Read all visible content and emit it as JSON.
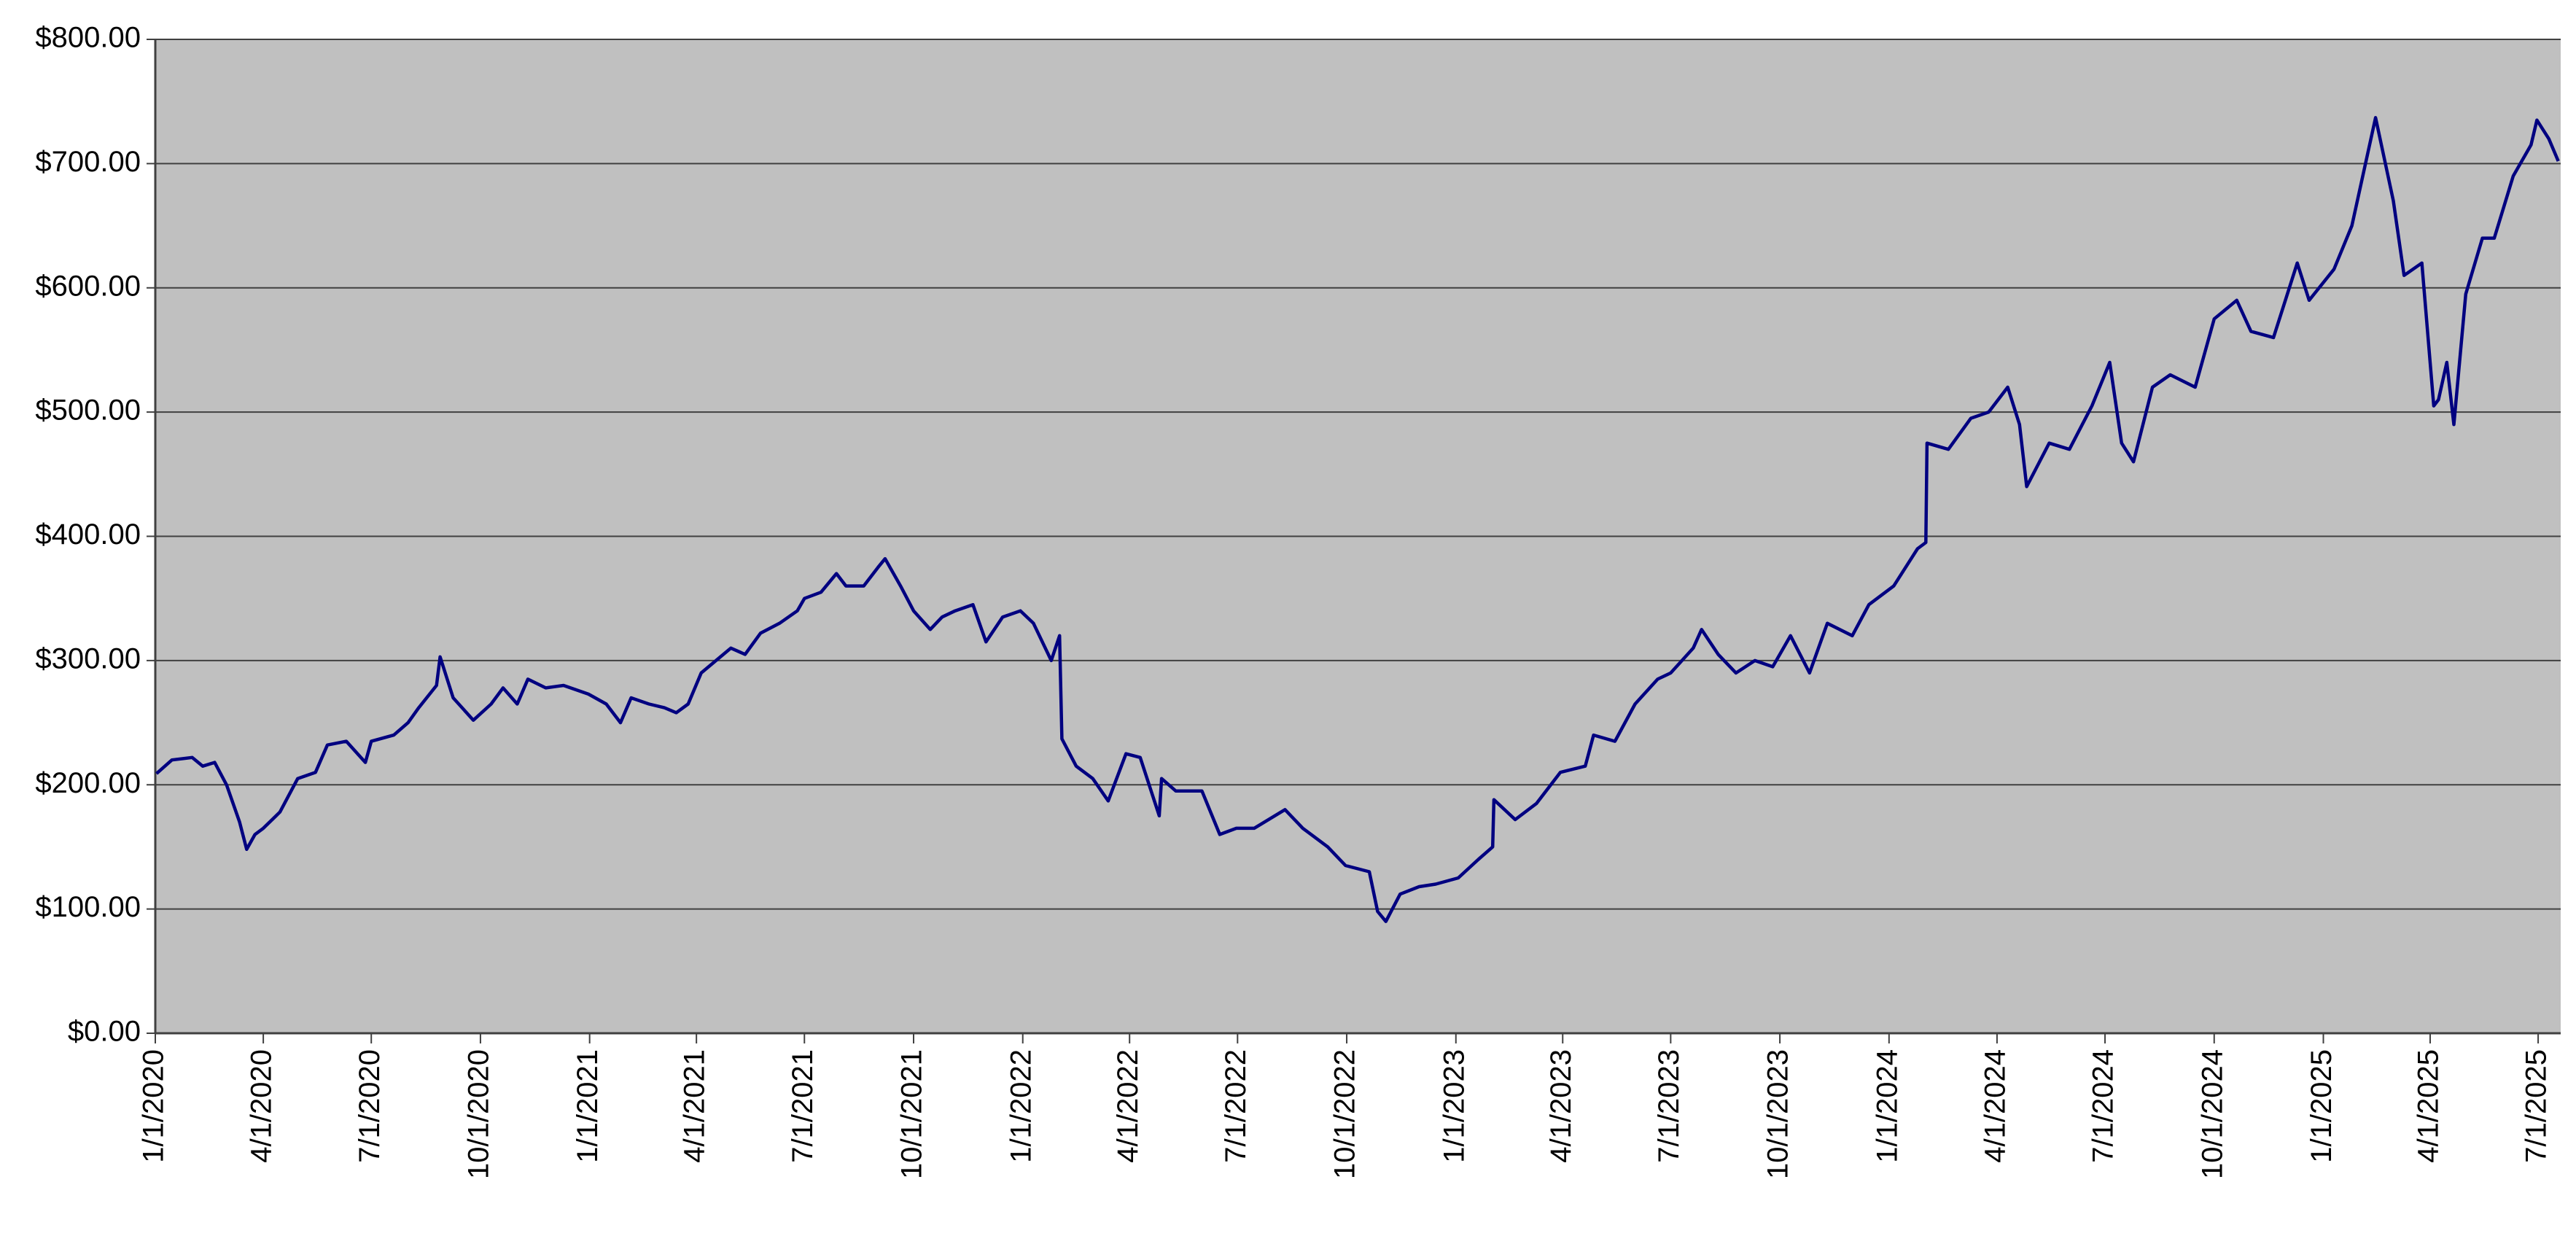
{
  "chart_data": {
    "type": "line",
    "x": [
      "2020-01-02",
      "2020-01-15",
      "2020-02-01",
      "2020-02-10",
      "2020-02-20",
      "2020-03-01",
      "2020-03-12",
      "2020-03-18",
      "2020-03-25",
      "2020-04-01",
      "2020-04-15",
      "2020-04-30",
      "2020-05-15",
      "2020-05-25",
      "2020-06-10",
      "2020-06-26",
      "2020-07-01",
      "2020-07-20",
      "2020-08-01",
      "2020-08-10",
      "2020-08-25",
      "2020-08-28",
      "2020-09-08",
      "2020-09-25",
      "2020-10-10",
      "2020-10-20",
      "2020-11-01",
      "2020-11-10",
      "2020-11-25",
      "2020-12-10",
      "2020-12-31",
      "2021-01-15",
      "2021-01-27",
      "2021-02-05",
      "2021-02-20",
      "2021-03-05",
      "2021-03-15",
      "2021-03-25",
      "2021-04-05",
      "2021-04-30",
      "2021-05-12",
      "2021-05-25",
      "2021-06-10",
      "2021-06-25",
      "2021-07-01",
      "2021-07-15",
      "2021-07-28",
      "2021-08-05",
      "2021-08-20",
      "2021-09-01",
      "2021-09-07",
      "2021-09-20",
      "2021-10-01",
      "2021-10-15",
      "2021-10-25",
      "2021-11-05",
      "2021-11-20",
      "2021-12-01",
      "2021-12-15",
      "2021-12-30",
      "2022-01-10",
      "2022-01-25",
      "2022-02-01",
      "2022-02-03",
      "2022-02-15",
      "2022-03-01",
      "2022-03-14",
      "2022-03-29",
      "2022-04-10",
      "2022-04-26",
      "2022-04-28",
      "2022-05-10",
      "2022-06-01",
      "2022-06-16",
      "2022-06-30",
      "2022-07-15",
      "2022-08-10",
      "2022-08-25",
      "2022-09-15",
      "2022-09-30",
      "2022-10-20",
      "2022-10-27",
      "2022-11-03",
      "2022-11-15",
      "2022-12-01",
      "2022-12-15",
      "2023-01-03",
      "2023-01-20",
      "2023-02-01",
      "2023-02-02",
      "2023-02-20",
      "2023-03-10",
      "2023-03-30",
      "2023-04-20",
      "2023-04-27",
      "2023-05-15",
      "2023-06-01",
      "2023-06-20",
      "2023-07-01",
      "2023-07-20",
      "2023-07-27",
      "2023-08-10",
      "2023-08-25",
      "2023-09-10",
      "2023-09-25",
      "2023-10-10",
      "2023-10-26",
      "2023-11-10",
      "2023-12-01",
      "2023-12-15",
      "2024-01-05",
      "2024-01-25",
      "2024-02-01",
      "2024-02-02",
      "2024-02-20",
      "2024-03-10",
      "2024-03-25",
      "2024-04-10",
      "2024-04-20",
      "2024-04-26",
      "2024-05-15",
      "2024-06-01",
      "2024-06-20",
      "2024-07-05",
      "2024-07-15",
      "2024-07-25",
      "2024-08-10",
      "2024-08-25",
      "2024-09-15",
      "2024-10-01",
      "2024-10-20",
      "2024-11-01",
      "2024-11-20",
      "2024-12-10",
      "2024-12-20",
      "2025-01-10",
      "2025-01-25",
      "2025-02-14",
      "2025-03-01",
      "2025-03-10",
      "2025-03-25",
      "2025-04-04",
      "2025-04-08",
      "2025-04-15",
      "2025-04-21",
      "2025-05-01",
      "2025-05-15",
      "2025-05-25",
      "2025-06-10",
      "2025-06-25",
      "2025-06-30",
      "2025-07-10",
      "2025-07-18"
    ],
    "series": [
      {
        "color": "#000080",
        "values": [
          209,
          220,
          222,
          215,
          218,
          200,
          170,
          148,
          160,
          165,
          178,
          205,
          210,
          232,
          235,
          218,
          235,
          240,
          250,
          262,
          280,
          303,
          270,
          252,
          265,
          278,
          265,
          285,
          278,
          280,
          273,
          265,
          250,
          270,
          265,
          262,
          258,
          265,
          290,
          310,
          305,
          322,
          330,
          340,
          350,
          355,
          370,
          360,
          360,
          375,
          382,
          360,
          340,
          325,
          335,
          340,
          345,
          315,
          335,
          340,
          330,
          300,
          320,
          237,
          215,
          205,
          187,
          225,
          222,
          175,
          205,
          195,
          195,
          160,
          165,
          165,
          180,
          165,
          150,
          135,
          130,
          98,
          90,
          112,
          118,
          120,
          125,
          140,
          150,
          188,
          172,
          185,
          210,
          215,
          240,
          235,
          265,
          285,
          290,
          310,
          325,
          305,
          290,
          300,
          295,
          320,
          290,
          330,
          320,
          345,
          360,
          390,
          395,
          475,
          470,
          495,
          500,
          520,
          490,
          440,
          475,
          470,
          505,
          540,
          475,
          460,
          520,
          530,
          520,
          575,
          590,
          565,
          560,
          620,
          590,
          615,
          650,
          737,
          670,
          610,
          620,
          505,
          510,
          540,
          490,
          595,
          640,
          640,
          690,
          715,
          735,
          720,
          702
        ]
      }
    ],
    "xlim": [
      "2020-01-01",
      "2025-07-20"
    ],
    "xticks": [
      {
        "value": "2020-01-01",
        "label": "1/1/2020"
      },
      {
        "value": "2020-04-01",
        "label": "4/1/2020"
      },
      {
        "value": "2020-07-01",
        "label": "7/1/2020"
      },
      {
        "value": "2020-10-01",
        "label": "10/1/2020"
      },
      {
        "value": "2021-01-01",
        "label": "1/1/2021"
      },
      {
        "value": "2021-04-01",
        "label": "4/1/2021"
      },
      {
        "value": "2021-07-01",
        "label": "7/1/2021"
      },
      {
        "value": "2021-10-01",
        "label": "10/1/2021"
      },
      {
        "value": "2022-01-01",
        "label": "1/1/2022"
      },
      {
        "value": "2022-04-01",
        "label": "4/1/2022"
      },
      {
        "value": "2022-07-01",
        "label": "7/1/2022"
      },
      {
        "value": "2022-10-01",
        "label": "10/1/2022"
      },
      {
        "value": "2023-01-01",
        "label": "1/1/2023"
      },
      {
        "value": "2023-04-01",
        "label": "4/1/2023"
      },
      {
        "value": "2023-07-01",
        "label": "7/1/2023"
      },
      {
        "value": "2023-10-01",
        "label": "10/1/2023"
      },
      {
        "value": "2024-01-01",
        "label": "1/1/2024"
      },
      {
        "value": "2024-04-01",
        "label": "4/1/2024"
      },
      {
        "value": "2024-07-01",
        "label": "7/1/2024"
      },
      {
        "value": "2024-10-01",
        "label": "10/1/2024"
      },
      {
        "value": "2025-01-01",
        "label": "1/1/2025"
      },
      {
        "value": "2025-04-01",
        "label": "4/1/2025"
      },
      {
        "value": "2025-07-01",
        "label": "7/1/2025"
      }
    ],
    "ylim": [
      0,
      800
    ],
    "yticks": [
      {
        "value": 0,
        "label": "$0.00"
      },
      {
        "value": 100,
        "label": "$100.00"
      },
      {
        "value": 200,
        "label": "$200.00"
      },
      {
        "value": 300,
        "label": "$300.00"
      },
      {
        "value": 400,
        "label": "$400.00"
      },
      {
        "value": 500,
        "label": "$500.00"
      },
      {
        "value": 600,
        "label": "$600.00"
      },
      {
        "value": 700,
        "label": "$700.00"
      },
      {
        "value": 800,
        "label": "$800.00"
      }
    ],
    "grid": true,
    "background": "#c0c0c0"
  }
}
